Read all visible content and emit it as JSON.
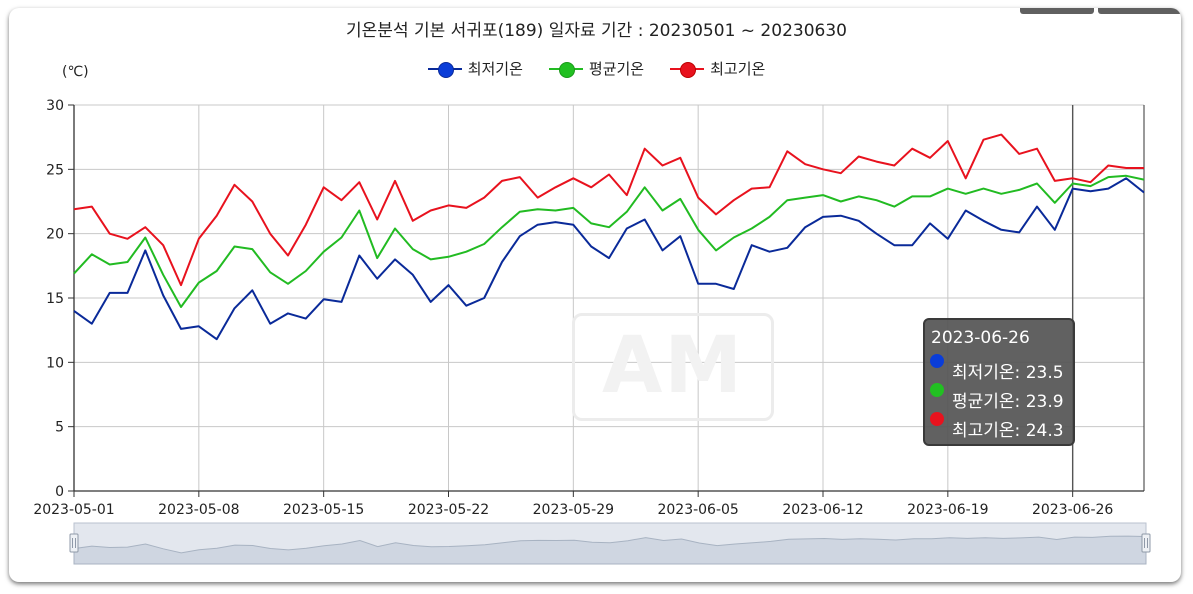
{
  "chart_data": {
    "type": "line",
    "title": "기온분석 기본 서귀포(189) 일자료 기간 : 20230501 ~ 20230630",
    "ylabel": "(℃)",
    "xlabel": "",
    "ylim": [
      0,
      30
    ],
    "yticks": [
      0,
      5,
      10,
      15,
      20,
      25,
      30
    ],
    "xtick_labels": [
      "2023-05-01",
      "2023-05-08",
      "2023-05-15",
      "2023-05-22",
      "2023-05-29",
      "2023-06-05",
      "2023-06-12",
      "2023-06-19",
      "2023-06-26"
    ],
    "grid": true,
    "legend_position": "top-center",
    "x": [
      "2023-05-01",
      "2023-05-02",
      "2023-05-03",
      "2023-05-04",
      "2023-05-05",
      "2023-05-06",
      "2023-05-07",
      "2023-05-08",
      "2023-05-09",
      "2023-05-10",
      "2023-05-11",
      "2023-05-12",
      "2023-05-13",
      "2023-05-14",
      "2023-05-15",
      "2023-05-16",
      "2023-05-17",
      "2023-05-18",
      "2023-05-19",
      "2023-05-20",
      "2023-05-21",
      "2023-05-22",
      "2023-05-23",
      "2023-05-24",
      "2023-05-25",
      "2023-05-26",
      "2023-05-27",
      "2023-05-28",
      "2023-05-29",
      "2023-05-30",
      "2023-05-31",
      "2023-06-01",
      "2023-06-02",
      "2023-06-03",
      "2023-06-04",
      "2023-06-05",
      "2023-06-06",
      "2023-06-07",
      "2023-06-08",
      "2023-06-09",
      "2023-06-10",
      "2023-06-11",
      "2023-06-12",
      "2023-06-13",
      "2023-06-14",
      "2023-06-15",
      "2023-06-16",
      "2023-06-17",
      "2023-06-18",
      "2023-06-19",
      "2023-06-20",
      "2023-06-21",
      "2023-06-22",
      "2023-06-23",
      "2023-06-24",
      "2023-06-25",
      "2023-06-26",
      "2023-06-27",
      "2023-06-28",
      "2023-06-29",
      "2023-06-30"
    ],
    "series": [
      {
        "name": "최저기온",
        "color": "#0a2a99",
        "values": [
          14.0,
          13.0,
          15.4,
          15.4,
          18.7,
          15.2,
          12.6,
          12.8,
          11.8,
          14.2,
          15.6,
          13.0,
          13.8,
          13.4,
          14.9,
          14.7,
          18.3,
          16.5,
          18.0,
          16.8,
          14.7,
          16.0,
          14.4,
          15.0,
          17.8,
          19.8,
          20.7,
          20.9,
          20.7,
          19.0,
          18.1,
          20.4,
          21.1,
          18.7,
          19.8,
          16.1,
          16.1,
          15.7,
          19.1,
          18.6,
          18.9,
          20.5,
          21.3,
          21.4,
          21.0,
          20.0,
          19.1,
          19.1,
          20.8,
          19.6,
          21.8,
          21.0,
          20.3,
          20.1,
          22.1,
          20.3,
          23.5,
          23.3,
          23.5,
          24.3,
          23.2
        ]
      },
      {
        "name": "평균기온",
        "color": "#22bb22",
        "values": [
          16.9,
          18.4,
          17.6,
          17.8,
          19.7,
          16.8,
          14.3,
          16.2,
          17.1,
          19.0,
          18.8,
          17.0,
          16.1,
          17.1,
          18.6,
          19.7,
          21.8,
          18.1,
          20.4,
          18.8,
          18.0,
          18.2,
          18.6,
          19.2,
          20.5,
          21.7,
          21.9,
          21.8,
          22.0,
          20.8,
          20.5,
          21.7,
          23.6,
          21.8,
          22.7,
          20.3,
          18.7,
          19.7,
          20.4,
          21.3,
          22.6,
          22.8,
          23.0,
          22.5,
          22.9,
          22.6,
          22.1,
          22.9,
          22.9,
          23.5,
          23.1,
          23.5,
          23.1,
          23.4,
          23.9,
          22.4,
          23.9,
          23.7,
          24.4,
          24.5,
          24.2
        ]
      },
      {
        "name": "최고기온",
        "color": "#e8121e",
        "values": [
          21.9,
          22.1,
          20.0,
          19.6,
          20.5,
          19.1,
          16.0,
          19.6,
          21.4,
          23.8,
          22.5,
          20.0,
          18.3,
          20.7,
          23.6,
          22.6,
          24.0,
          21.1,
          24.1,
          21.0,
          21.8,
          22.2,
          22.0,
          22.8,
          24.1,
          24.4,
          22.8,
          23.6,
          24.3,
          23.6,
          24.6,
          23.0,
          26.6,
          25.3,
          25.9,
          22.8,
          21.5,
          22.6,
          23.5,
          23.6,
          26.4,
          25.4,
          25.0,
          24.7,
          26.0,
          25.6,
          25.3,
          26.6,
          25.9,
          27.2,
          24.3,
          27.3,
          27.7,
          26.2,
          26.6,
          24.1,
          24.3,
          24.0,
          25.3,
          25.1,
          25.1
        ]
      }
    ]
  },
  "tooltip": {
    "date": "2023-06-26",
    "rows": [
      {
        "text": "최저기온: 23.5",
        "color": "#0a3dd8"
      },
      {
        "text": "평균기온: 23.9",
        "color": "#22c022"
      },
      {
        "text": "최고기온: 24.3",
        "color": "#e8121e"
      }
    ]
  },
  "watermark": "AM",
  "colors": {
    "grid": "#c8c8c8",
    "axis": "#333333",
    "navigator_fill": "#cfd6e1",
    "navigator_bg": "#e3e7ee"
  }
}
